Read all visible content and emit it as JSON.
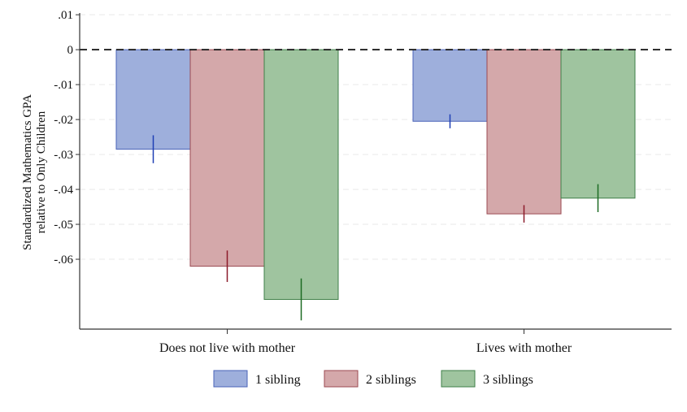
{
  "chart_data": {
    "type": "bar",
    "title": "",
    "xlabel": "",
    "ylabel_line1": "Standardized Mathematics GPA",
    "ylabel_line2": "relative to Only Children",
    "categories": [
      "Does not live with mother",
      "Lives with mother"
    ],
    "series": [
      {
        "name": "1 sibling",
        "values": [
          -0.0285,
          -0.0205
        ],
        "ci_low": [
          -0.0325,
          -0.0225
        ],
        "ci_high": [
          -0.0245,
          -0.0185
        ],
        "color": "#9eafdc",
        "stroke": "#4a63b8",
        "error_color": "#1f3fb5"
      },
      {
        "name": "2 siblings",
        "values": [
          -0.062,
          -0.047
        ],
        "ci_low": [
          -0.0665,
          -0.0495
        ],
        "ci_high": [
          -0.0575,
          -0.0445
        ],
        "color": "#d4a8aa",
        "stroke": "#9b4a52",
        "error_color": "#8b1a2a"
      },
      {
        "name": "3 siblings",
        "values": [
          -0.0715,
          -0.0425
        ],
        "ci_low": [
          -0.0775,
          -0.0465
        ],
        "ci_high": [
          -0.0655,
          -0.0385
        ],
        "color": "#9fc49f",
        "stroke": "#3f7f48",
        "error_color": "#1c6a22"
      }
    ],
    "ylim": [
      -0.08,
      0.0105
    ],
    "yticks": [
      0.01,
      0,
      -0.01,
      -0.02,
      -0.03,
      -0.04,
      -0.05,
      -0.06
    ],
    "ytick_labels": [
      ".01",
      "0",
      "-.01",
      "-.02",
      "-.03",
      "-.04",
      "-.05",
      "-.06"
    ],
    "reference_line": 0,
    "grid": true,
    "legend_position": "bottom"
  }
}
